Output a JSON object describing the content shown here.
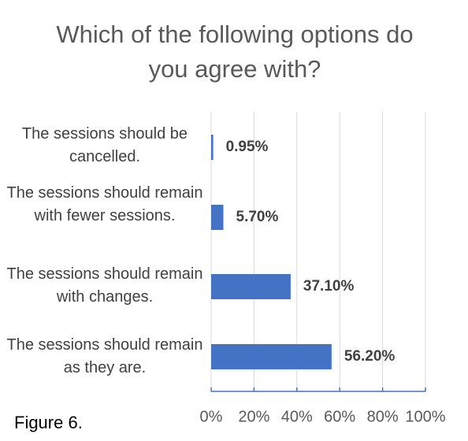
{
  "chart_data": {
    "type": "hbar",
    "title": "Which of the following options do you agree with?",
    "caption": "Figure 6.",
    "categories": [
      "The sessions should be cancelled.",
      "The sessions should remain with fewer sessions.",
      "The sessions should remain with changes.",
      "The sessions should remain as they are."
    ],
    "values": [
      0.95,
      5.7,
      37.1,
      56.2
    ],
    "value_labels": [
      "0.95%",
      "5.70%",
      "37.10%",
      "56.20%"
    ],
    "color": "#4472c4",
    "xlim": [
      0,
      100
    ],
    "xticks": [
      {
        "value": 0,
        "label": "0%"
      },
      {
        "value": 20,
        "label": "20%"
      },
      {
        "value": 40,
        "label": "40%"
      },
      {
        "value": 60,
        "label": "60%"
      },
      {
        "value": 80,
        "label": "80%"
      },
      {
        "value": 100,
        "label": "100%"
      }
    ],
    "grid": true
  }
}
